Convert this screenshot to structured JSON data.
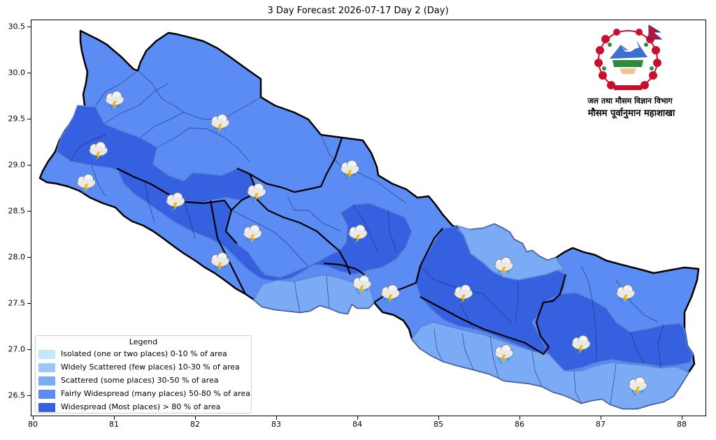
{
  "title": "3 Day Forecast 2026-07-17 Day 2 (Day)",
  "organization": {
    "line1": "जल तथा मौसम विज्ञान विभाग",
    "line2": "मौसम पूर्वानुमान महाशाखा"
  },
  "axes": {
    "y_ticks": [
      "30.5",
      "30.0",
      "29.5",
      "29.0",
      "28.5",
      "28.0",
      "27.5",
      "27.0",
      "26.5"
    ],
    "x_ticks": [
      "80",
      "81",
      "82",
      "83",
      "84",
      "85",
      "86",
      "87",
      "88"
    ]
  },
  "legend": {
    "title": "Legend",
    "items": [
      {
        "label": "Isolated (one or two places)  0-10 % of area",
        "color": "#bfe9ff"
      },
      {
        "label": "Widely Scattered (few places)  10-30 % of area",
        "color": "#9bc8f9"
      },
      {
        "label": "Scattered (some places)  30-50 % of area",
        "color": "#7aabf4"
      },
      {
        "label": "Fairly Widespread (many places)  50-80 % of area",
        "color": "#5a8cf3"
      },
      {
        "label": "Widespread (Most places) > 80 % of area",
        "color": "#3560e0"
      }
    ]
  },
  "map_colors": {
    "fairly_widespread": "#5a8cf3",
    "widespread": "#3560e0",
    "scattered": "#7aabf4",
    "border": "#000000"
  },
  "weather_icons": [
    {
      "name": "thunderstorm-rain-icon",
      "lon": 81.0,
      "lat": 29.7
    },
    {
      "name": "thunderstorm-rain-icon",
      "lon": 82.3,
      "lat": 29.45
    },
    {
      "name": "thunderstorm-rain-icon",
      "lon": 80.8,
      "lat": 29.15
    },
    {
      "name": "thunderstorm-rain-icon",
      "lon": 80.65,
      "lat": 28.8
    },
    {
      "name": "thunderstorm-rain-icon",
      "lon": 81.75,
      "lat": 28.6
    },
    {
      "name": "thunderstorm-rain-icon",
      "lon": 82.75,
      "lat": 28.7
    },
    {
      "name": "thunderstorm-rain-icon",
      "lon": 83.9,
      "lat": 28.95
    },
    {
      "name": "thunderstorm-rain-icon",
      "lon": 82.7,
      "lat": 28.25
    },
    {
      "name": "thunderstorm-rain-icon",
      "lon": 82.3,
      "lat": 27.95
    },
    {
      "name": "thunderstorm-rain-icon",
      "lon": 84.0,
      "lat": 28.25
    },
    {
      "name": "thunderstorm-rain-icon",
      "lon": 84.05,
      "lat": 27.7
    },
    {
      "name": "thunderstorm-rain-icon",
      "lon": 84.4,
      "lat": 27.6
    },
    {
      "name": "thunderstorm-rain-icon",
      "lon": 85.3,
      "lat": 27.6
    },
    {
      "name": "thunderstorm-rain-icon",
      "lon": 85.8,
      "lat": 27.9
    },
    {
      "name": "thunderstorm-rain-icon",
      "lon": 87.3,
      "lat": 27.6
    },
    {
      "name": "thunderstorm-rain-icon",
      "lon": 85.8,
      "lat": 26.95
    },
    {
      "name": "thunderstorm-rain-icon",
      "lon": 86.75,
      "lat": 27.05
    },
    {
      "name": "thunderstorm-rain-icon",
      "lon": 87.45,
      "lat": 26.6
    }
  ]
}
